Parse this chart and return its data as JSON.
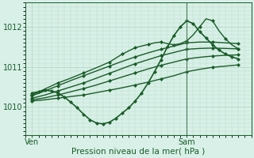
{
  "background_color": "#d8f0e8",
  "grid_color": "#b0d4bc",
  "line_color": "#1a5c28",
  "marker_color": "#1a5c28",
  "ylabel_left": [
    "1010",
    "1011",
    "1012"
  ],
  "yticks": [
    1010,
    1011,
    1012
  ],
  "ylim": [
    1009.35,
    1012.55
  ],
  "xlabel_bottom": "Pression niveau de la mer( hPa )",
  "xtick_labels": [
    "Ven",
    "Sam"
  ],
  "xtick_pos": [
    0,
    24
  ],
  "xlim": [
    -1,
    34
  ],
  "sam_line_x": 24,
  "series": [
    {
      "x": [
        0,
        2,
        4,
        6,
        8,
        10,
        12,
        14,
        16,
        18,
        20,
        22,
        24,
        26,
        28,
        30,
        32
      ],
      "y": [
        1010.15,
        1010.18,
        1010.22,
        1010.26,
        1010.3,
        1010.36,
        1010.42,
        1010.48,
        1010.55,
        1010.62,
        1010.7,
        1010.78,
        1010.88,
        1010.94,
        1010.99,
        1011.02,
        1011.05
      ],
      "lw": 1.0
    },
    {
      "x": [
        0,
        2,
        4,
        6,
        8,
        10,
        12,
        14,
        16,
        18,
        20,
        22,
        24,
        26,
        28,
        30,
        32
      ],
      "y": [
        1010.18,
        1010.23,
        1010.3,
        1010.38,
        1010.46,
        1010.55,
        1010.65,
        1010.75,
        1010.85,
        1010.95,
        1011.04,
        1011.12,
        1011.2,
        1011.24,
        1011.27,
        1011.29,
        1011.3
      ],
      "lw": 1.0
    },
    {
      "x": [
        0,
        2,
        4,
        6,
        8,
        10,
        12,
        14,
        16,
        18,
        20,
        22,
        24,
        26,
        28,
        30,
        32
      ],
      "y": [
        1010.22,
        1010.3,
        1010.4,
        1010.5,
        1010.6,
        1010.72,
        1010.84,
        1010.96,
        1011.08,
        1011.18,
        1011.28,
        1011.36,
        1011.44,
        1011.46,
        1011.47,
        1011.46,
        1011.45
      ],
      "lw": 1.0
    },
    {
      "x": [
        0,
        2,
        4,
        6,
        8,
        10,
        12,
        14,
        16,
        18,
        20,
        22,
        24,
        26,
        28,
        30,
        32
      ],
      "y": [
        1010.28,
        1010.4,
        1010.53,
        1010.66,
        1010.78,
        1010.9,
        1011.02,
        1011.14,
        1011.25,
        1011.35,
        1011.44,
        1011.52,
        1011.6,
        1011.62,
        1011.62,
        1011.6,
        1011.58
      ],
      "lw": 1.0
    },
    {
      "x": [
        0,
        2,
        4,
        6,
        8,
        10,
        12,
        13,
        14,
        15,
        16,
        17,
        18,
        19,
        20,
        21,
        22,
        23,
        24,
        25,
        26,
        27,
        28,
        29,
        30,
        31,
        32
      ],
      "y": [
        1010.3,
        1010.45,
        1010.6,
        1010.72,
        1010.85,
        1010.98,
        1011.12,
        1011.22,
        1011.32,
        1011.4,
        1011.48,
        1011.52,
        1011.56,
        1011.6,
        1011.62,
        1011.58,
        1011.55,
        1011.58,
        1011.65,
        1011.8,
        1012.0,
        1012.2,
        1012.15,
        1011.9,
        1011.7,
        1011.55,
        1011.45
      ],
      "lw": 1.0
    },
    {
      "x": [
        0,
        1,
        2,
        3,
        4,
        5,
        6,
        7,
        8,
        9,
        10,
        11,
        12,
        13,
        14,
        15,
        16,
        17,
        18,
        19,
        20,
        21,
        22,
        23,
        24,
        25,
        26,
        27,
        28,
        29,
        30,
        31,
        32
      ],
      "y": [
        1010.35,
        1010.38,
        1010.42,
        1010.4,
        1010.35,
        1010.25,
        1010.12,
        1009.98,
        1009.82,
        1009.68,
        1009.6,
        1009.58,
        1009.62,
        1009.72,
        1009.85,
        1009.98,
        1010.15,
        1010.35,
        1010.6,
        1010.88,
        1011.18,
        1011.5,
        1011.78,
        1012.0,
        1012.15,
        1012.08,
        1011.88,
        1011.72,
        1011.55,
        1011.42,
        1011.32,
        1011.25,
        1011.2
      ],
      "lw": 1.2
    }
  ],
  "marker": "D",
  "markersize": 2.0,
  "markevery": 2
}
